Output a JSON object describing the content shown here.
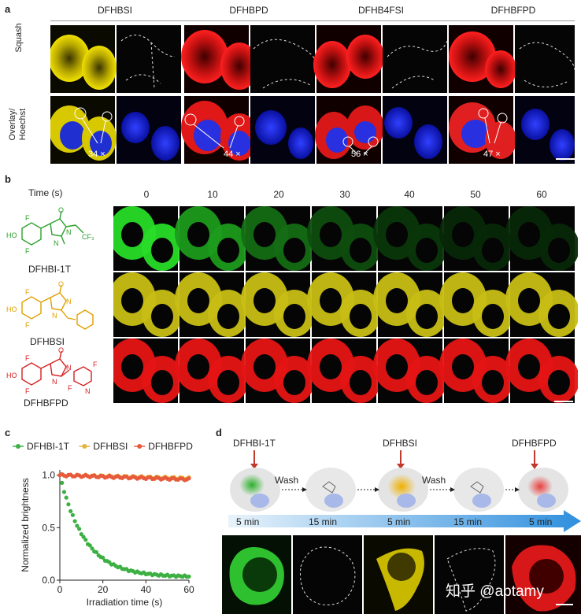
{
  "panel_a": {
    "label": "a",
    "columns": [
      "DFHBSI",
      "DFHBPD",
      "DFHB4FSI",
      "DFHBFPD"
    ],
    "row_labels": [
      "Squash",
      "Overlay/\nHoechst"
    ],
    "ratios": [
      "34 ×",
      "44 ×",
      "56 ×",
      "47 ×"
    ],
    "colors": [
      "#e0d000",
      "#e82020",
      "#e02020",
      "#e83030"
    ]
  },
  "panel_b": {
    "label": "b",
    "time_label": "Time (s)",
    "times": [
      "0",
      "10",
      "20",
      "30",
      "40",
      "50",
      "60"
    ],
    "compounds": [
      {
        "name": "DFHBI-1T",
        "color": "#2aa02a"
      },
      {
        "name": "DFHBSI",
        "color": "#e0a000"
      },
      {
        "name": "DFHBFPD",
        "color": "#d62020"
      }
    ],
    "struct_text": [
      "F",
      "HO",
      "F",
      "O",
      "N",
      "CF₃",
      "N",
      "F",
      "HO",
      "F",
      "O",
      "N",
      "N",
      "F",
      "HO",
      "F",
      "O",
      "N",
      "N",
      "F",
      "N",
      "F"
    ]
  },
  "panel_c": {
    "label": "c",
    "chart_data": {
      "type": "scatter",
      "xlabel": "Irradiation time (s)",
      "ylabel": "Normalized brightness",
      "xlim": [
        0,
        60
      ],
      "ylim": [
        0,
        1.05
      ],
      "xticks": [
        0,
        20,
        40,
        60
      ],
      "yticks": [
        0.0,
        0.5,
        1.0
      ],
      "legend_position": "top",
      "series": [
        {
          "name": "DFHBI-1T",
          "color": "#3cb043",
          "decay": 0.085,
          "plateau": 0.03
        },
        {
          "name": "DFHBSI",
          "color": "#e3b43c",
          "decay": 0.0005,
          "plateau": 0.97
        },
        {
          "name": "DFHBFPD",
          "color": "#e85a3c",
          "decay": 0.0006,
          "plateau": 0.96
        }
      ]
    }
  },
  "panel_d": {
    "label": "d",
    "dyes": [
      "DFHBI-1T",
      "DFHBSI",
      "DFHBFPD"
    ],
    "wash": [
      "Wash",
      "Wash"
    ],
    "durations": [
      "5 min",
      "15 min",
      "5 min",
      "15 min",
      "5 min"
    ],
    "watermark": "知乎 @aptamy"
  }
}
